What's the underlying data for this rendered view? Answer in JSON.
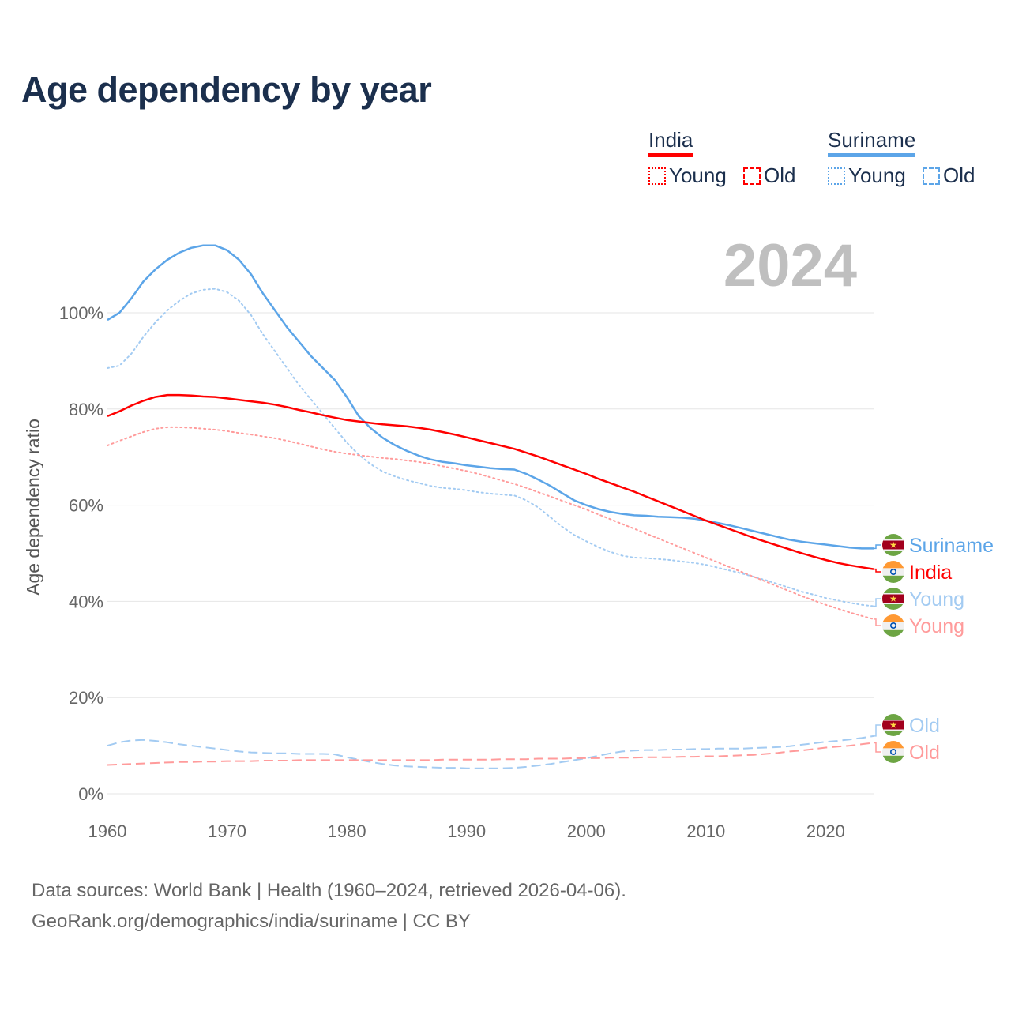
{
  "title": "Age dependency by year",
  "legend": [
    {
      "country": "India",
      "color": "#ff0000",
      "items": [
        {
          "label": "Young",
          "style": "dotted"
        },
        {
          "label": "Old",
          "style": "dashed"
        }
      ]
    },
    {
      "country": "Suriname",
      "color": "#5ca5e8",
      "items": [
        {
          "label": "Young",
          "style": "dotted"
        },
        {
          "label": "Old",
          "style": "dashed"
        }
      ]
    }
  ],
  "footer": {
    "line1": "Data sources: World Bank | Health (1960–2024, retrieved 2026-04-06).",
    "line2": "GeoRank.org/demographics/india/suriname | CC BY"
  },
  "chart_data": {
    "type": "line",
    "title": "Age dependency by year",
    "year_watermark": "2024",
    "xlabel": "",
    "ylabel": "Age dependency ratio",
    "x_start": 1960,
    "x_end": 2024,
    "xlim": [
      1960,
      2024
    ],
    "ylim": [
      0,
      115
    ],
    "x_ticks": [
      "1960",
      "1970",
      "1980",
      "1990",
      "2000",
      "2010",
      "2020"
    ],
    "y_ticks": [
      {
        "value": 0,
        "label": "0%"
      },
      {
        "value": 20,
        "label": "20%"
      },
      {
        "value": 40,
        "label": "40%"
      },
      {
        "value": 60,
        "label": "60%"
      },
      {
        "value": 80,
        "label": "80%"
      },
      {
        "value": 100,
        "label": "100%"
      }
    ],
    "grid": true,
    "legend_position": "top-right",
    "series": [
      {
        "name": "Suriname",
        "label": "Suriname",
        "country": "suriname",
        "color": "#5ca5e8",
        "dash": "solid",
        "values": [
          98.5,
          100,
          103,
          106.5,
          109,
          111,
          112.5,
          113.5,
          114,
          114,
          113,
          111,
          108,
          104,
          100.5,
          97,
          94,
          91,
          88.5,
          86,
          82.5,
          78.5,
          76,
          74,
          72.5,
          71.3,
          70.3,
          69.5,
          69,
          68.7,
          68.3,
          68,
          67.7,
          67.5,
          67.4,
          66.5,
          65.3,
          64,
          62.5,
          61,
          60,
          59.2,
          58.6,
          58.2,
          57.9,
          57.8,
          57.6,
          57.5,
          57.4,
          57.2,
          56.8,
          56.3,
          55.8,
          55.2,
          54.6,
          54,
          53.4,
          52.8,
          52.4,
          52.1,
          51.8,
          51.5,
          51.2,
          51,
          51
        ]
      },
      {
        "name": "India",
        "label": "India",
        "country": "india",
        "color": "#ff0000",
        "dash": "solid",
        "values": [
          78.5,
          79.5,
          80.7,
          81.7,
          82.5,
          82.9,
          82.9,
          82.8,
          82.6,
          82.5,
          82.2,
          81.9,
          81.6,
          81.3,
          80.9,
          80.4,
          79.8,
          79.3,
          78.7,
          78.2,
          77.7,
          77.4,
          77.1,
          76.8,
          76.6,
          76.4,
          76.1,
          75.7,
          75.2,
          74.7,
          74.1,
          73.5,
          72.9,
          72.3,
          71.7,
          70.9,
          70.1,
          69.2,
          68.3,
          67.4,
          66.5,
          65.5,
          64.6,
          63.7,
          62.8,
          61.8,
          60.8,
          59.8,
          58.8,
          57.8,
          56.8,
          55.9,
          55,
          54.1,
          53.2,
          52.4,
          51.6,
          50.8,
          50,
          49.3,
          48.6,
          48,
          47.5,
          47.1,
          46.7
        ]
      },
      {
        "name": "Suriname Young",
        "label": "Young",
        "country": "suriname",
        "color": "#a3cbf2",
        "dash": "dotted",
        "values": [
          88.5,
          89,
          91.5,
          95,
          98,
          100.5,
          102.5,
          104,
          104.8,
          105,
          104.3,
          102.5,
          99.5,
          95.5,
          92,
          88.5,
          85,
          82,
          79,
          76,
          73,
          70.5,
          68.5,
          67,
          66,
          65.2,
          64.6,
          64,
          63.6,
          63.4,
          63.1,
          62.7,
          62.4,
          62.2,
          62,
          61,
          59.5,
          57.5,
          55.5,
          53.8,
          52.5,
          51.3,
          50.3,
          49.5,
          49.1,
          49,
          48.8,
          48.6,
          48.3,
          48,
          47.6,
          47,
          46.4,
          45.8,
          45.1,
          44.4,
          43.6,
          42.8,
          42,
          41.4,
          40.7,
          40.2,
          39.7,
          39.3,
          39
        ]
      },
      {
        "name": "India Young",
        "label": "Young",
        "country": "india",
        "color": "#ff9b9b",
        "dash": "dotted",
        "values": [
          72.4,
          73.4,
          74.3,
          75.2,
          75.9,
          76.2,
          76.2,
          76.1,
          75.9,
          75.7,
          75.4,
          75,
          74.7,
          74.3,
          73.9,
          73.4,
          72.8,
          72.2,
          71.6,
          71.1,
          70.7,
          70.4,
          70.1,
          69.8,
          69.6,
          69.3,
          69,
          68.6,
          68.1,
          67.6,
          67.1,
          66.5,
          65.8,
          65.1,
          64.4,
          63.6,
          62.7,
          61.8,
          60.9,
          60,
          59.1,
          58.1,
          57.1,
          56.1,
          55.1,
          54.1,
          53.1,
          52.1,
          51.1,
          50.1,
          49.1,
          48.1,
          47.1,
          46.1,
          45.1,
          44.1,
          43.1,
          42.1,
          41.1,
          40.2,
          39.3,
          38.5,
          37.7,
          37,
          36.3
        ]
      },
      {
        "name": "Suriname Old",
        "label": "Old",
        "country": "suriname",
        "color": "#a3cbf2",
        "dash": "dashed",
        "values": [
          10,
          10.7,
          11.1,
          11.2,
          11,
          10.7,
          10.3,
          10,
          9.7,
          9.4,
          9.1,
          8.8,
          8.6,
          8.5,
          8.4,
          8.4,
          8.3,
          8.3,
          8.3,
          8.2,
          7.6,
          7.1,
          6.6,
          6.2,
          5.9,
          5.7,
          5.6,
          5.5,
          5.4,
          5.4,
          5.3,
          5.3,
          5.3,
          5.3,
          5.4,
          5.6,
          5.9,
          6.2,
          6.6,
          7,
          7.4,
          7.9,
          8.4,
          8.8,
          9,
          9.1,
          9.1,
          9.2,
          9.2,
          9.3,
          9.3,
          9.4,
          9.4,
          9.4,
          9.5,
          9.6,
          9.7,
          9.9,
          10.2,
          10.5,
          10.8,
          11,
          11.3,
          11.6,
          12
        ]
      },
      {
        "name": "India Old",
        "label": "Old",
        "country": "india",
        "color": "#ff9b9b",
        "dash": "dashed",
        "values": [
          6,
          6.1,
          6.2,
          6.3,
          6.4,
          6.5,
          6.6,
          6.6,
          6.7,
          6.7,
          6.8,
          6.8,
          6.8,
          6.9,
          6.9,
          6.9,
          7,
          7,
          7,
          7,
          7,
          7,
          7,
          7,
          7,
          7,
          7,
          7,
          7.1,
          7.1,
          7.1,
          7.1,
          7.1,
          7.2,
          7.2,
          7.2,
          7.3,
          7.3,
          7.3,
          7.4,
          7.4,
          7.4,
          7.5,
          7.5,
          7.5,
          7.6,
          7.6,
          7.6,
          7.7,
          7.7,
          7.8,
          7.8,
          7.9,
          8,
          8.1,
          8.3,
          8.5,
          8.8,
          9,
          9.3,
          9.6,
          9.8,
          10,
          10.3,
          10.6
        ]
      }
    ]
  }
}
